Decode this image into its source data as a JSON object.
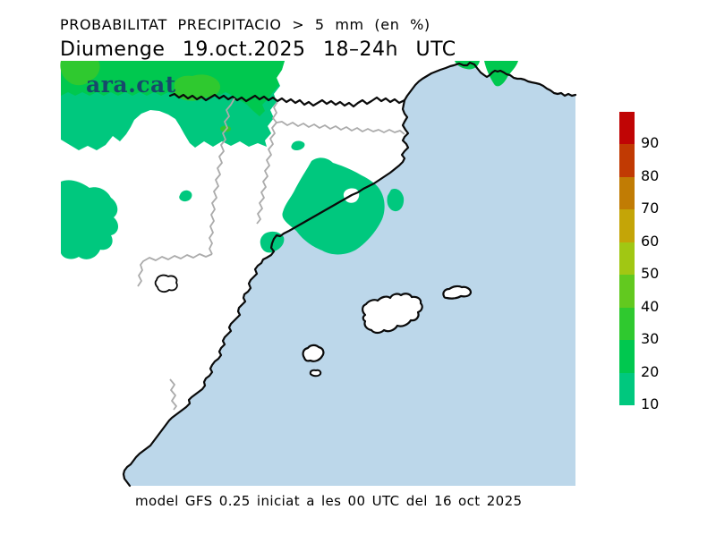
{
  "header": {
    "title": "PROBABILITAT PRECIPITACIO > 5 mm (en %)",
    "subtitle": "Diumenge 19.oct.2025 18–24h UTC"
  },
  "logo": {
    "text": "ara.cat",
    "color": "#17496B"
  },
  "footer": {
    "caption": "model GFS 0.25 iniciat a les 00 UTC del 16 oct 2025"
  },
  "legend": {
    "orientation": "vertical",
    "entries": [
      {
        "label": "90",
        "color": "#C00505"
      },
      {
        "label": "80",
        "color": "#C13A03"
      },
      {
        "label": "70",
        "color": "#C17C04"
      },
      {
        "label": "60",
        "color": "#C4A507"
      },
      {
        "label": "50",
        "color": "#A1C713"
      },
      {
        "label": "40",
        "color": "#62C91F"
      },
      {
        "label": "30",
        "color": "#2FC92F"
      },
      {
        "label": "20",
        "color": "#00C84F"
      },
      {
        "label": "10",
        "color": "#00C87E"
      }
    ]
  },
  "map": {
    "colors": {
      "sea": "#BCD7EA",
      "land": "#FFFFFF",
      "coast": "#0A0A0A",
      "region_border": "#ABABAB",
      "prob_10_20": "#00C87E",
      "prob_20_30": "#00C84F",
      "prob_30_40": "#2FC92F"
    }
  }
}
